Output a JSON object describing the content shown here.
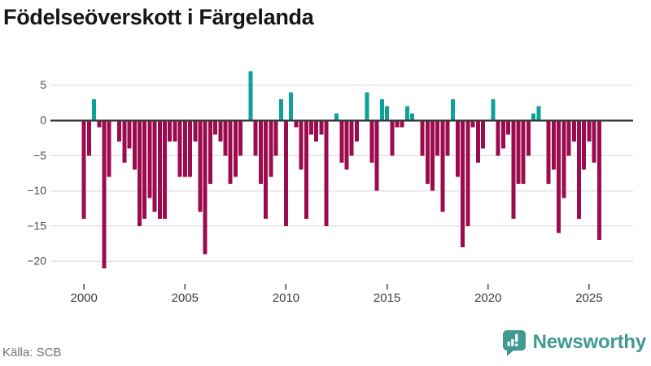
{
  "title": "Födelseöverskott i Färgelanda",
  "source": "Källa: SCB",
  "brand": {
    "name": "Newsworthy",
    "color": "#3f9a91"
  },
  "colors": {
    "positive": "#0ca29a",
    "negative": "#9c0b4e",
    "grid": "#e3e3e3",
    "zero_line": "#3a3a3a"
  },
  "chart_data": {
    "type": "bar",
    "title": "Födelseöverskott i Färgelanda",
    "x_unit": "quarter",
    "grid": true,
    "legend": false,
    "ylim": [
      -22,
      8
    ],
    "yticks": [
      5,
      0,
      -5,
      -10,
      -15,
      -20
    ],
    "ytick_labels": [
      "5",
      "0",
      "−5",
      "−10",
      "−15",
      "−20"
    ],
    "xticks": [
      2000,
      2005,
      2010,
      2015,
      2020,
      2025
    ],
    "categories": [
      "2000 Q1",
      "2000 Q2",
      "2000 Q3",
      "2000 Q4",
      "2001 Q1",
      "2001 Q2",
      "2001 Q3",
      "2001 Q4",
      "2002 Q1",
      "2002 Q2",
      "2002 Q3",
      "2002 Q4",
      "2003 Q1",
      "2003 Q2",
      "2003 Q3",
      "2003 Q4",
      "2004 Q1",
      "2004 Q2",
      "2004 Q3",
      "2004 Q4",
      "2005 Q1",
      "2005 Q2",
      "2005 Q3",
      "2005 Q4",
      "2006 Q1",
      "2006 Q2",
      "2006 Q3",
      "2006 Q4",
      "2007 Q1",
      "2007 Q2",
      "2007 Q3",
      "2007 Q4",
      "2008 Q1",
      "2008 Q2",
      "2008 Q3",
      "2008 Q4",
      "2009 Q1",
      "2009 Q2",
      "2009 Q3",
      "2009 Q4",
      "2010 Q1",
      "2010 Q2",
      "2010 Q3",
      "2010 Q4",
      "2011 Q1",
      "2011 Q2",
      "2011 Q3",
      "2011 Q4",
      "2012 Q1",
      "2012 Q2",
      "2012 Q3",
      "2012 Q4",
      "2013 Q1",
      "2013 Q2",
      "2013 Q3",
      "2013 Q4",
      "2014 Q1",
      "2014 Q2",
      "2014 Q3",
      "2014 Q4",
      "2015 Q1",
      "2015 Q2",
      "2015 Q3",
      "2015 Q4",
      "2016 Q1",
      "2016 Q2",
      "2016 Q3",
      "2016 Q4",
      "2017 Q1",
      "2017 Q2",
      "2017 Q3",
      "2017 Q4",
      "2018 Q1",
      "2018 Q2",
      "2018 Q3",
      "2018 Q4",
      "2019 Q1",
      "2019 Q2",
      "2019 Q3",
      "2019 Q4",
      "2020 Q1",
      "2020 Q2",
      "2020 Q3",
      "2020 Q4",
      "2021 Q1",
      "2021 Q2",
      "2021 Q3",
      "2021 Q4",
      "2022 Q1",
      "2022 Q2",
      "2022 Q3",
      "2022 Q4",
      "2023 Q1",
      "2023 Q2",
      "2023 Q3",
      "2023 Q4",
      "2024 Q1",
      "2024 Q2",
      "2024 Q3",
      "2024 Q4",
      "2025 Q1",
      "2025 Q2",
      "2025 Q3"
    ],
    "values": [
      -14,
      -5,
      3,
      -1,
      -21,
      -8,
      0,
      -3,
      -6,
      -4,
      -7,
      -15,
      -14,
      -11,
      -13,
      -14,
      -14,
      -3,
      -3,
      -8,
      -8,
      -8,
      -3,
      -13,
      -19,
      -9,
      -2,
      -3,
      -5,
      -9,
      -8,
      -5,
      0,
      7,
      -5,
      -9,
      -14,
      -8,
      -5,
      3,
      -15,
      4,
      -1,
      -7,
      -14,
      -2,
      -3,
      -2,
      -15,
      0,
      1,
      -6,
      -7,
      -5,
      -3,
      0,
      4,
      -6,
      -10,
      3,
      2,
      -5,
      -1,
      -1,
      2,
      1,
      0,
      -5,
      -9,
      -10,
      -5,
      -13,
      -5,
      3,
      -8,
      -18,
      -15,
      -1,
      -6,
      -4,
      0,
      3,
      -5,
      -4,
      -2,
      -14,
      -9,
      -9,
      -5,
      1,
      2,
      0,
      -9,
      -7,
      -16,
      -11,
      -5,
      -3,
      -14,
      -7,
      -3,
      -6,
      -17
    ]
  }
}
